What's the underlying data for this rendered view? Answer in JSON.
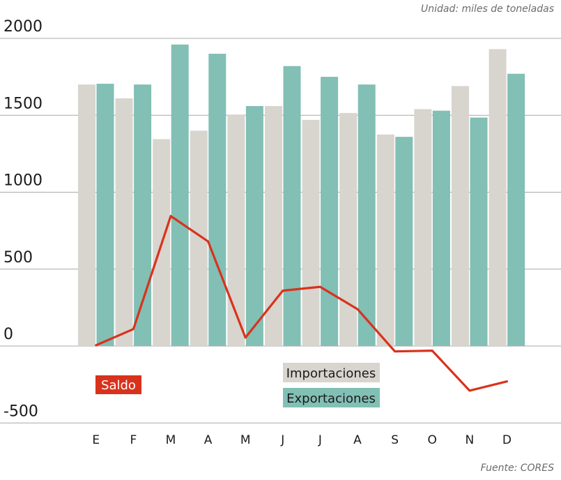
{
  "unit_note": "Unidad: miles de toneladas",
  "source_note": "Fuente: CORES",
  "colors": {
    "importaciones": "#d8d4ce",
    "exportaciones": "#82bfb5",
    "saldo": "#d9321c",
    "grid": "#a8a8a8"
  },
  "chart_data": {
    "type": "bar",
    "title": "",
    "xlabel": "",
    "ylabel": "",
    "ylim": [
      -500,
      2000
    ],
    "yticks": [
      2000,
      1500,
      1000,
      500,
      0,
      -500
    ],
    "ytick_labels": [
      "2000",
      "1500",
      "1000",
      "500",
      "0",
      "-500"
    ],
    "categories": [
      "E",
      "F",
      "M",
      "A",
      "M",
      "J",
      "J",
      "A",
      "S",
      "O",
      "N",
      "D"
    ],
    "series": [
      {
        "name": "Importaciones",
        "kind": "bar",
        "values": [
          1700,
          1610,
          1345,
          1400,
          1505,
          1560,
          1470,
          1515,
          1375,
          1540,
          1690,
          1930
        ]
      },
      {
        "name": "Exportaciones",
        "kind": "bar",
        "values": [
          1705,
          1700,
          1960,
          1900,
          1560,
          1820,
          1750,
          1700,
          1360,
          1530,
          1485,
          1770
        ]
      },
      {
        "name": "Saldo",
        "kind": "line",
        "values": [
          5,
          110,
          845,
          680,
          55,
          360,
          385,
          240,
          -35,
          -30,
          -290,
          -230
        ]
      }
    ],
    "legend": [
      {
        "label": "Importaciones",
        "series": "Importaciones"
      },
      {
        "label": "Exportaciones",
        "series": "Exportaciones"
      },
      {
        "label": "Saldo",
        "series": "Saldo"
      }
    ]
  }
}
